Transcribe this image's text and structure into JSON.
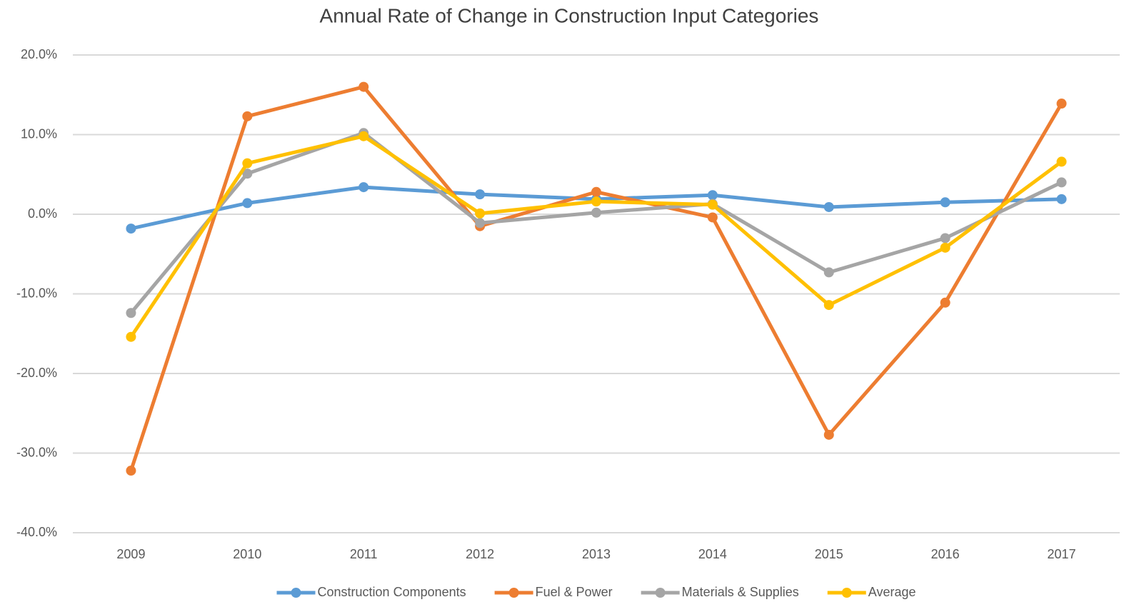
{
  "chart_data": {
    "type": "line",
    "title": "Annual Rate of Change in Construction Input Categories",
    "categories": [
      "2009",
      "2010",
      "2011",
      "2012",
      "2013",
      "2014",
      "2015",
      "2016",
      "2017"
    ],
    "series": [
      {
        "name": "Construction Components",
        "color": "#5b9bd5",
        "values": [
          -1.8,
          1.4,
          3.4,
          2.5,
          1.9,
          2.4,
          0.9,
          1.5,
          1.9
        ]
      },
      {
        "name": "Fuel & Power",
        "color": "#ed7d31",
        "values": [
          -32.2,
          12.3,
          16.0,
          -1.5,
          2.8,
          -0.4,
          -27.7,
          -11.1,
          13.9
        ]
      },
      {
        "name": "Materials & Supplies",
        "color": "#a5a5a5",
        "values": [
          -12.4,
          5.1,
          10.2,
          -1.1,
          0.2,
          1.3,
          -7.3,
          -3.0,
          4.0
        ]
      },
      {
        "name": "Average",
        "color": "#ffc000",
        "values": [
          -15.4,
          6.4,
          9.8,
          0.1,
          1.6,
          1.2,
          -11.4,
          -4.2,
          6.6
        ]
      }
    ],
    "ylim": [
      -40,
      20
    ],
    "yticks": [
      {
        "value": -40,
        "label": "-40.0%"
      },
      {
        "value": -30,
        "label": "-30.0%"
      },
      {
        "value": -20,
        "label": "-20.0%"
      },
      {
        "value": -10,
        "label": "-10.0%"
      },
      {
        "value": 0,
        "label": "0.0%"
      },
      {
        "value": 10,
        "label": "10.0%"
      },
      {
        "value": 20,
        "label": "20.0%"
      }
    ],
    "grid": true,
    "legend": "bottom"
  }
}
